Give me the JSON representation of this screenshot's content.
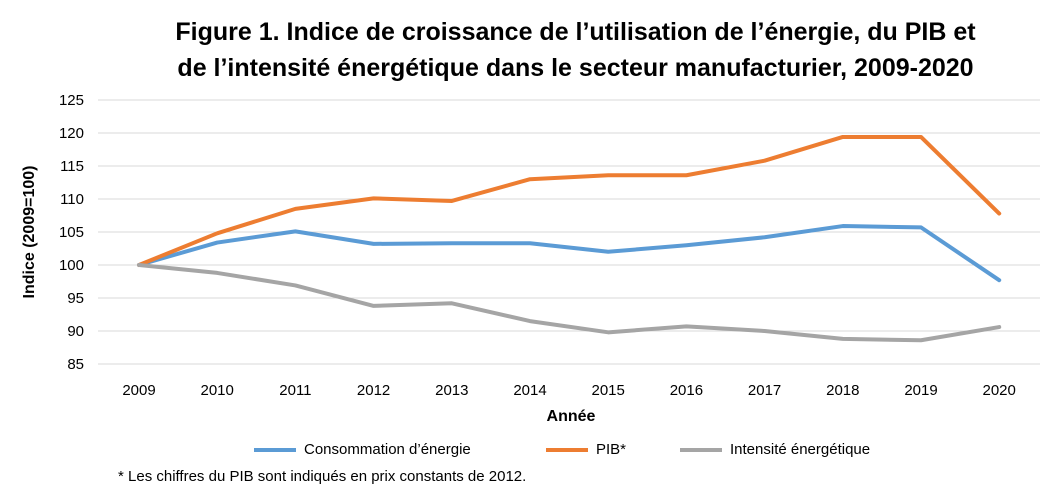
{
  "chart_data": {
    "type": "line",
    "title_line1": "Figure 1. Indice de croissance de l’utilisation de l’énergie, du PIB et",
    "title_line2": "de l’intensité énergétique dans le secteur manufacturier, 2009-2020",
    "xlabel": "Année",
    "ylabel": "Indice (2009=100)",
    "x": [
      "2009",
      "2010",
      "2011",
      "2012",
      "2013",
      "2014",
      "2015",
      "2016",
      "2017",
      "2018",
      "2019",
      "2020"
    ],
    "yticks": [
      "85",
      "90",
      "95",
      "100",
      "105",
      "110",
      "115",
      "120",
      "125"
    ],
    "ylim": [
      85,
      125
    ],
    "grid": "horizontal",
    "legend_position": "bottom",
    "series": [
      {
        "name": "Consommation d’énergie",
        "color": "#5b9bd5",
        "values": [
          100,
          103.4,
          105.1,
          103.2,
          103.3,
          103.3,
          102.0,
          103.0,
          104.2,
          105.9,
          105.7,
          97.7
        ]
      },
      {
        "name": "PIB*",
        "color": "#ed7d31",
        "values": [
          100,
          104.8,
          108.5,
          110.1,
          109.7,
          113.0,
          113.6,
          113.6,
          115.8,
          119.4,
          119.4,
          107.8
        ]
      },
      {
        "name": "Intensité énergétique",
        "color": "#a5a5a5",
        "values": [
          100,
          98.8,
          96.9,
          93.8,
          94.2,
          91.5,
          89.8,
          90.7,
          90.0,
          88.8,
          88.6,
          90.6
        ]
      }
    ],
    "footnote": "* Les chiffres du PIB sont indiqués en prix constants de 2012."
  }
}
